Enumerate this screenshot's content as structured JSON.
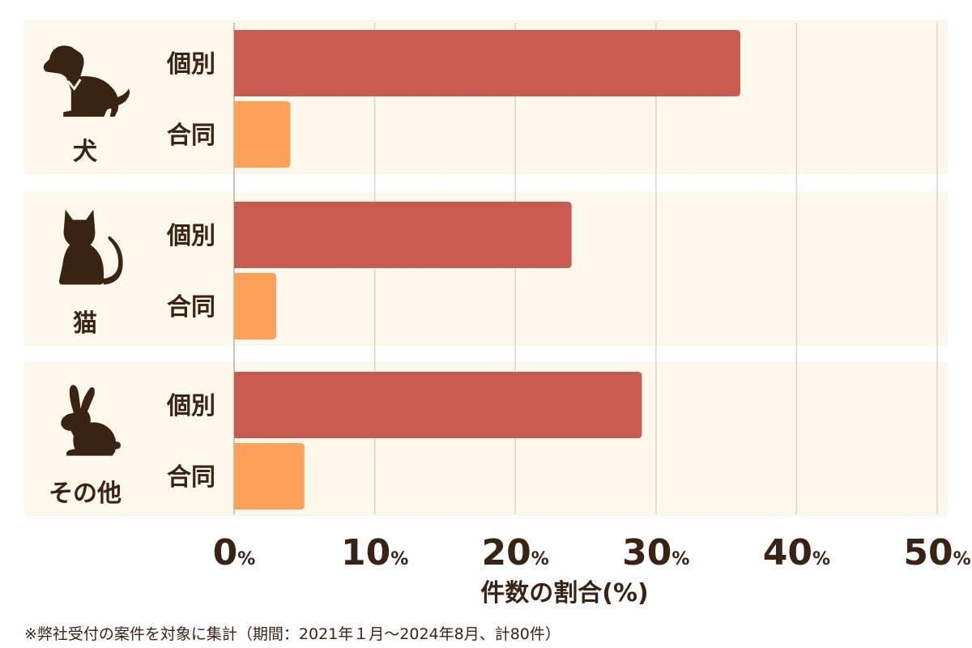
{
  "chart_data": {
    "type": "bar",
    "orientation": "horizontal",
    "categories": [
      "犬",
      "猫",
      "その他"
    ],
    "bar_labels": [
      "個別",
      "合同"
    ],
    "series": [
      {
        "name": "個別",
        "values": [
          36,
          24,
          29
        ]
      },
      {
        "name": "合同",
        "values": [
          4,
          3,
          5
        ]
      }
    ],
    "xlim": [
      0,
      50
    ],
    "x_ticks": [
      0,
      10,
      20,
      30,
      40,
      50
    ],
    "tick_unit": "%",
    "xlabel": "件数の割合(%)",
    "grid": true,
    "icons": [
      "dog-icon",
      "cat-icon",
      "rabbit-icon"
    ],
    "colors": {
      "individual": "#c95b4e",
      "group": "#fca05a",
      "panel": "#fdf8ec",
      "grid": "#ddd6c8",
      "text": "#3b2314"
    }
  },
  "footnote": "※弊社受付の案件を対象に集計（期間：2021年１月〜2024年8月、計80件）"
}
